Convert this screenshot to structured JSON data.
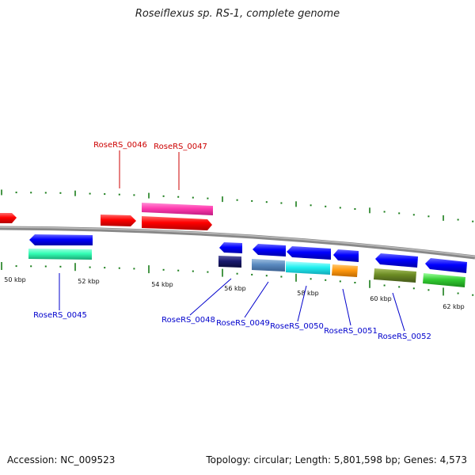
{
  "title": "Roseiflexus sp. RS-1, complete genome",
  "accession": "Accession: NC_009523",
  "topology": "Topology: circular; Length: 5,801,598 bp; Genes: 4,573",
  "colors": {
    "red": "#ff0000",
    "blue": "#0000ff",
    "ticks_green": "#1a7d1a"
  },
  "tick_labels": [
    "50 kbp",
    "52 kbp",
    "54 kbp",
    "56 kbp",
    "58 kbp",
    "60 kbp",
    "62 kbp"
  ],
  "genes": [
    {
      "label": "RoseRS_0046",
      "strand": "+",
      "color": "#ff0000"
    },
    {
      "label": "RoseRS_0047",
      "strand": "+",
      "color": "#ff0000"
    },
    {
      "label": "RoseRS_0045",
      "strand": "-",
      "color": "#0000ff"
    },
    {
      "label": "RoseRS_0048",
      "strand": "-",
      "color": "#0000ff"
    },
    {
      "label": "RoseRS_0049",
      "strand": "-",
      "color": "#0000ff"
    },
    {
      "label": "RoseRS_0050",
      "strand": "-",
      "color": "#0000ff"
    },
    {
      "label": "RoseRS_0051",
      "strand": "-",
      "color": "#0000ff"
    },
    {
      "label": "RoseRS_0052",
      "strand": "-",
      "color": "#0000ff"
    }
  ]
}
